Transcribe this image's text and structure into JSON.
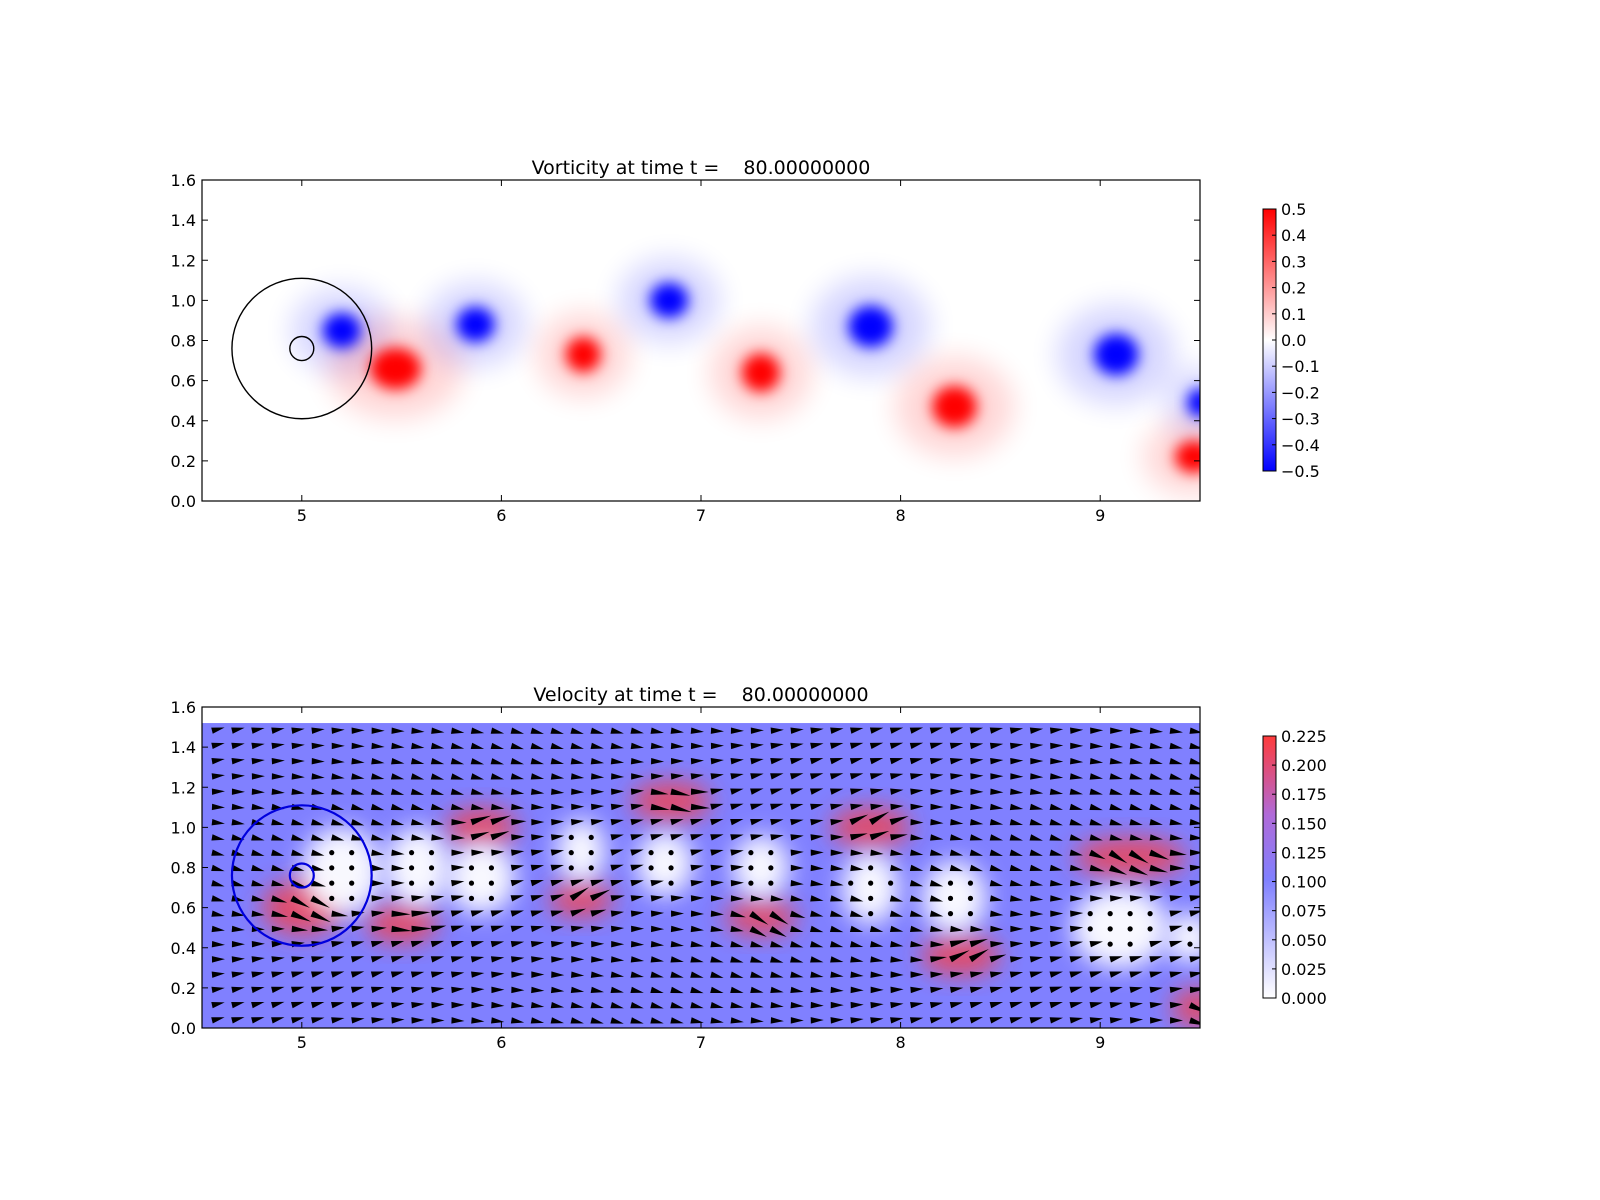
{
  "chart_data": [
    {
      "type": "heatmap",
      "title": "Vorticity at time t =    80.00000000",
      "xlabel": "",
      "ylabel": "",
      "xlim": [
        4.5,
        9.5
      ],
      "ylim": [
        0.0,
        1.6
      ],
      "xticks": [
        "5",
        "6",
        "7",
        "8",
        "9"
      ],
      "xtick_values": [
        5,
        6,
        7,
        8,
        9
      ],
      "yticks": [
        "0.0",
        "0.2",
        "0.4",
        "0.6",
        "0.8",
        "1.0",
        "1.2",
        "1.4",
        "1.6"
      ],
      "ytick_values": [
        0.0,
        0.2,
        0.4,
        0.6,
        0.8,
        1.0,
        1.2,
        1.4,
        1.6
      ],
      "colormap": "bwr",
      "colors": {
        "low": "#0000ff",
        "mid": "#ffffff",
        "high": "#ff0000"
      },
      "colorbar": {
        "range": [
          -0.5,
          0.5
        ],
        "ticks": [
          "0.5",
          "0.4",
          "0.3",
          "0.2",
          "0.1",
          "0.0",
          "−0.1",
          "−0.2",
          "−0.3",
          "−0.4",
          "−0.5"
        ],
        "tick_values": [
          0.5,
          0.4,
          0.3,
          0.2,
          0.1,
          0.0,
          -0.1,
          -0.2,
          -0.3,
          -0.4,
          -0.5
        ]
      },
      "vortices": [
        {
          "x": 5.2,
          "y": 0.85,
          "sign": -1,
          "rx": 0.12,
          "ry": 0.11
        },
        {
          "x": 5.47,
          "y": 0.66,
          "sign": 1,
          "rx": 0.16,
          "ry": 0.13
        },
        {
          "x": 5.87,
          "y": 0.88,
          "sign": -1,
          "rx": 0.12,
          "ry": 0.11
        },
        {
          "x": 6.41,
          "y": 0.73,
          "sign": 1,
          "rx": 0.11,
          "ry": 0.11
        },
        {
          "x": 6.84,
          "y": 1.0,
          "sign": -1,
          "rx": 0.12,
          "ry": 0.11
        },
        {
          "x": 7.3,
          "y": 0.64,
          "sign": 1,
          "rx": 0.12,
          "ry": 0.12
        },
        {
          "x": 7.85,
          "y": 0.87,
          "sign": -1,
          "rx": 0.14,
          "ry": 0.13
        },
        {
          "x": 8.27,
          "y": 0.47,
          "sign": 1,
          "rx": 0.14,
          "ry": 0.13
        },
        {
          "x": 9.08,
          "y": 0.73,
          "sign": -1,
          "rx": 0.14,
          "ry": 0.13
        },
        {
          "x": 9.5,
          "y": 0.49,
          "sign": -1,
          "rx": 0.08,
          "ry": 0.09
        },
        {
          "x": 9.47,
          "y": 0.22,
          "sign": 1,
          "rx": 0.12,
          "ry": 0.1
        }
      ],
      "circles": [
        {
          "x": 5.0,
          "y": 0.76,
          "r": 0.35,
          "color": "#000000"
        },
        {
          "x": 5.0,
          "y": 0.76,
          "r": 0.06,
          "color": "#000000"
        }
      ]
    },
    {
      "type": "heatmap",
      "title": "Velocity at time t =    80.00000000",
      "xlabel": "",
      "ylabel": "",
      "xlim": [
        4.5,
        9.5
      ],
      "ylim": [
        0.0,
        1.6
      ],
      "xticks": [
        "5",
        "6",
        "7",
        "8",
        "9"
      ],
      "xtick_values": [
        5,
        6,
        7,
        8,
        9
      ],
      "yticks": [
        "0.0",
        "0.2",
        "0.4",
        "0.6",
        "0.8",
        "1.0",
        "1.2",
        "1.4",
        "1.6"
      ],
      "ytick_values": [
        0.0,
        0.2,
        0.4,
        0.6,
        0.8,
        1.0,
        1.2,
        1.4,
        1.6
      ],
      "data_ylim": [
        0.0,
        1.52
      ],
      "colormap": "white-blue-red",
      "colors": {
        "low": "#ffffff",
        "mid": "#8080ff",
        "high": "#ff3b3b"
      },
      "overlay": "quiver",
      "colorbar": {
        "range": [
          0.0,
          0.225
        ],
        "ticks": [
          "0.225",
          "0.200",
          "0.175",
          "0.150",
          "0.125",
          "0.100",
          "0.075",
          "0.050",
          "0.025",
          "0.000"
        ],
        "tick_values": [
          0.225,
          0.2,
          0.175,
          0.15,
          0.125,
          0.1,
          0.075,
          0.05,
          0.025,
          0.0
        ]
      },
      "background_speed": 0.1,
      "slow_regions": [
        {
          "x": 5.2,
          "y": 0.78,
          "rx": 0.2,
          "ry": 0.22
        },
        {
          "x": 5.58,
          "y": 0.8,
          "rx": 0.16,
          "ry": 0.2
        },
        {
          "x": 5.9,
          "y": 0.75,
          "rx": 0.17,
          "ry": 0.18
        },
        {
          "x": 6.4,
          "y": 0.88,
          "rx": 0.12,
          "ry": 0.16
        },
        {
          "x": 6.82,
          "y": 0.82,
          "rx": 0.14,
          "ry": 0.16
        },
        {
          "x": 7.3,
          "y": 0.8,
          "rx": 0.14,
          "ry": 0.16
        },
        {
          "x": 7.85,
          "y": 0.7,
          "rx": 0.14,
          "ry": 0.18
        },
        {
          "x": 8.27,
          "y": 0.65,
          "rx": 0.16,
          "ry": 0.18
        },
        {
          "x": 9.1,
          "y": 0.5,
          "rx": 0.24,
          "ry": 0.2
        },
        {
          "x": 9.45,
          "y": 0.45,
          "rx": 0.12,
          "ry": 0.12
        }
      ],
      "fast_regions": [
        {
          "x": 5.0,
          "y": 0.6,
          "rx": 0.2,
          "ry": 0.14
        },
        {
          "x": 5.5,
          "y": 0.52,
          "rx": 0.18,
          "ry": 0.1
        },
        {
          "x": 5.9,
          "y": 1.0,
          "rx": 0.18,
          "ry": 0.1
        },
        {
          "x": 6.4,
          "y": 0.64,
          "rx": 0.16,
          "ry": 0.09
        },
        {
          "x": 6.85,
          "y": 1.13,
          "rx": 0.2,
          "ry": 0.1
        },
        {
          "x": 7.3,
          "y": 0.55,
          "rx": 0.18,
          "ry": 0.09
        },
        {
          "x": 7.85,
          "y": 1.0,
          "rx": 0.2,
          "ry": 0.1
        },
        {
          "x": 8.3,
          "y": 0.36,
          "rx": 0.2,
          "ry": 0.1
        },
        {
          "x": 9.15,
          "y": 0.85,
          "rx": 0.28,
          "ry": 0.1
        },
        {
          "x": 9.48,
          "y": 0.1,
          "rx": 0.12,
          "ry": 0.1
        }
      ],
      "circles": [
        {
          "x": 5.0,
          "y": 0.76,
          "r": 0.35,
          "color": "#0000dd"
        },
        {
          "x": 5.0,
          "y": 0.76,
          "r": 0.06,
          "color": "#0000dd"
        }
      ]
    }
  ]
}
